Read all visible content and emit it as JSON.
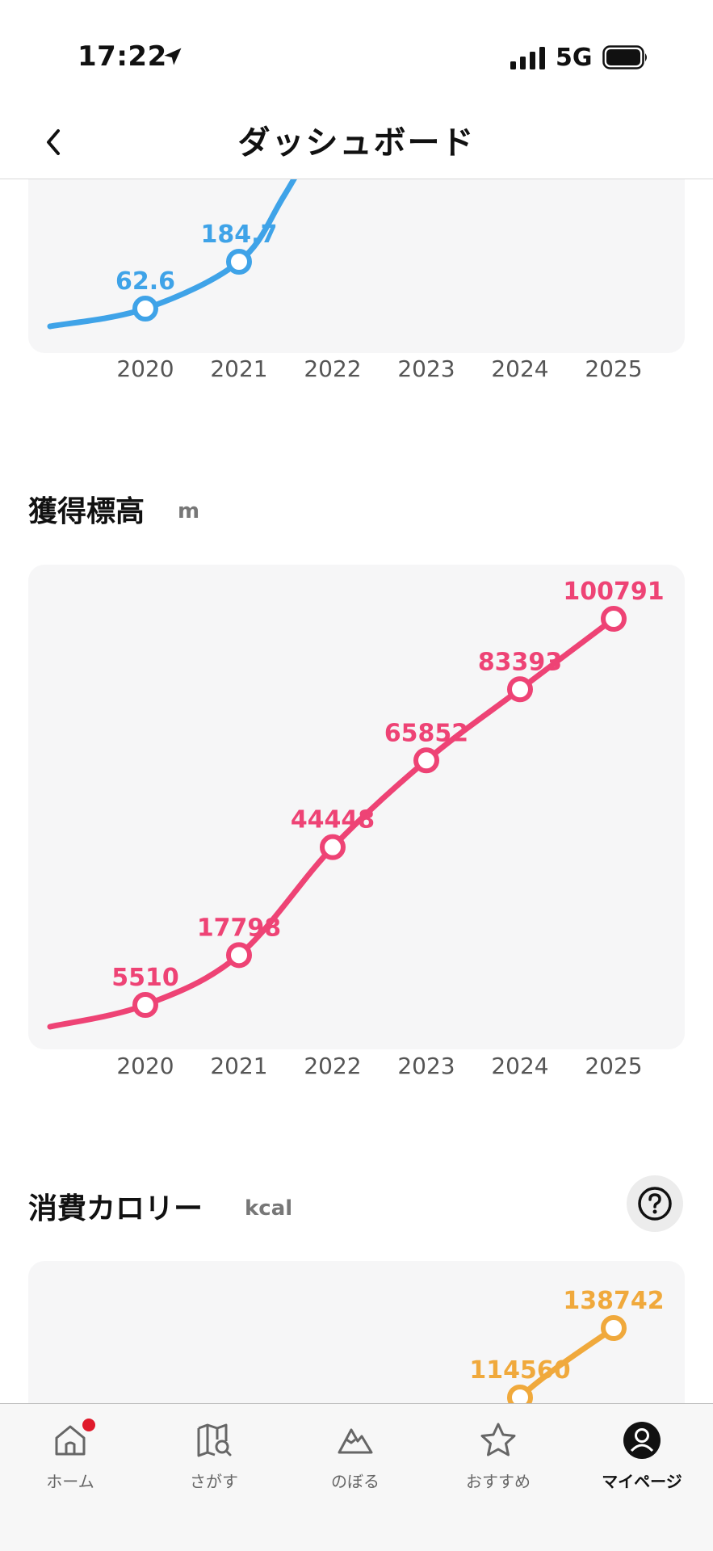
{
  "status_bar": {
    "time": "17:22",
    "network": "5G"
  },
  "nav": {
    "title": "ダッシュボード"
  },
  "sections": [
    {
      "id": "distance",
      "title": "",
      "unit": ""
    },
    {
      "id": "elevation",
      "title": "獲得標高",
      "unit": "m"
    },
    {
      "id": "calories",
      "title": "消費カロリー",
      "unit": "kcal"
    }
  ],
  "chart_data": [
    {
      "type": "line",
      "color": "#3fa3e8",
      "x": [
        "2020",
        "2021",
        "2022",
        "2023",
        "2024",
        "2025"
      ],
      "visible_values": [
        62.6,
        184.7
      ],
      "labels": [
        "62.6",
        "184.7"
      ],
      "note_visible": "partially scrolled out of view above; only 2020 and 2021 points visible"
    },
    {
      "type": "line",
      "color": "#ee4375",
      "x": [
        "2020",
        "2021",
        "2022",
        "2023",
        "2024",
        "2025"
      ],
      "values": [
        5510,
        17798,
        44448,
        65852,
        83393,
        100791
      ],
      "labels": [
        "5510",
        "17798",
        "44448",
        "65852",
        "83393",
        "100791"
      ]
    },
    {
      "type": "line",
      "color": "#f0a93c",
      "x": [
        "2024",
        "2025"
      ],
      "values": [
        114560,
        138742
      ],
      "labels": [
        "114560",
        "138742"
      ]
    }
  ],
  "tabs": [
    {
      "label": "ホーム",
      "icon": "home-icon",
      "badge": true
    },
    {
      "label": "さがす",
      "icon": "map-search-icon"
    },
    {
      "label": "のぼる",
      "icon": "mountain-icon"
    },
    {
      "label": "おすすめ",
      "icon": "star-icon"
    },
    {
      "label": "マイページ",
      "icon": "user-icon",
      "active": true
    }
  ]
}
